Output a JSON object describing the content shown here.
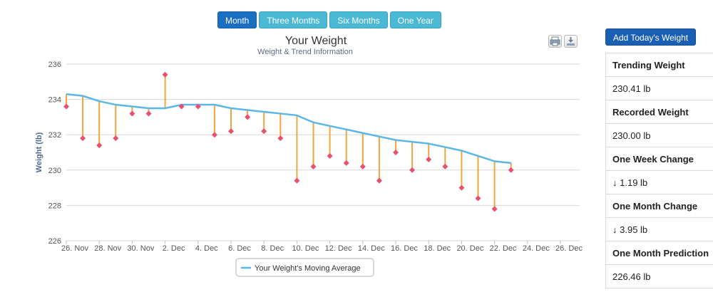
{
  "tabs": [
    {
      "label": "Month",
      "active": true
    },
    {
      "label": "Three Months",
      "active": false
    },
    {
      "label": "Six Months",
      "active": false
    },
    {
      "label": "One Year",
      "active": false
    }
  ],
  "toolbar": {
    "print_icon": "print-icon",
    "download_icon": "download-icon"
  },
  "panel": {
    "add_button": "Add Today's Weight",
    "stats": [
      {
        "label": "Trending Weight",
        "value": "230.41 lb"
      },
      {
        "label": "Recorded Weight",
        "value": "230.00 lb"
      },
      {
        "label": "One Week Change",
        "value": "1.19 lb",
        "arrow": "↓"
      },
      {
        "label": "One Month Change",
        "value": "3.95 lb",
        "arrow": "↓"
      },
      {
        "label": "One Month Prediction",
        "value": "226.46 lb"
      }
    ]
  },
  "colors": {
    "trend": "#5bb7e6",
    "points": "#e8506e",
    "stems": "#f0a63c",
    "tab_active": "#1a6fc2",
    "tab": "#4bb8d4"
  },
  "chart_data": {
    "type": "line",
    "title": "Your Weight",
    "subtitle": "Weight & Trend Information",
    "ylabel": "Weight (lb)",
    "xlabel": "",
    "ylim": [
      226,
      236
    ],
    "yticks": [
      226,
      228,
      230,
      232,
      234,
      236
    ],
    "xtick_labels": [
      "26. Nov",
      "28. Nov",
      "30. Nov",
      "2. Dec",
      "4. Dec",
      "6. Dec",
      "8. Dec",
      "10. Dec",
      "12. Dec",
      "14. Dec",
      "16. Dec",
      "18. Dec",
      "20. Dec",
      "22. Dec",
      "24. Dec",
      "26. Dec"
    ],
    "x_start_label": "26. Nov",
    "grid": true,
    "legend": "bottom-center",
    "series": [
      {
        "name": "Your Weight's Moving Average",
        "kind": "trend",
        "day_index": [
          0,
          1,
          2,
          3,
          4,
          5,
          6,
          7,
          8,
          9,
          10,
          11,
          12,
          13,
          14,
          15,
          16,
          17,
          18,
          19,
          20,
          21,
          22,
          23,
          24,
          25,
          26,
          27
        ],
        "values": [
          234.3,
          234.2,
          233.9,
          233.7,
          233.6,
          233.5,
          233.5,
          233.7,
          233.7,
          233.7,
          233.5,
          233.4,
          233.3,
          233.2,
          233.1,
          232.7,
          232.5,
          232.3,
          232.1,
          231.9,
          231.7,
          231.6,
          231.5,
          231.3,
          231.1,
          230.8,
          230.5,
          230.4
        ]
      },
      {
        "name": "",
        "kind": "recorded",
        "day_index": [
          0,
          1,
          2,
          3,
          4,
          5,
          6,
          7,
          8,
          9,
          10,
          11,
          12,
          13,
          14,
          15,
          16,
          17,
          18,
          19,
          20,
          21,
          22,
          23,
          24,
          25,
          26,
          27
        ],
        "values": [
          233.6,
          231.8,
          231.4,
          231.8,
          233.2,
          233.2,
          235.4,
          233.6,
          233.6,
          232.0,
          232.2,
          233.0,
          232.2,
          231.8,
          229.4,
          230.2,
          230.8,
          230.4,
          230.2,
          229.4,
          231.0,
          230.0,
          230.6,
          230.2,
          229.0,
          228.4,
          227.8,
          230.0
        ]
      }
    ]
  }
}
